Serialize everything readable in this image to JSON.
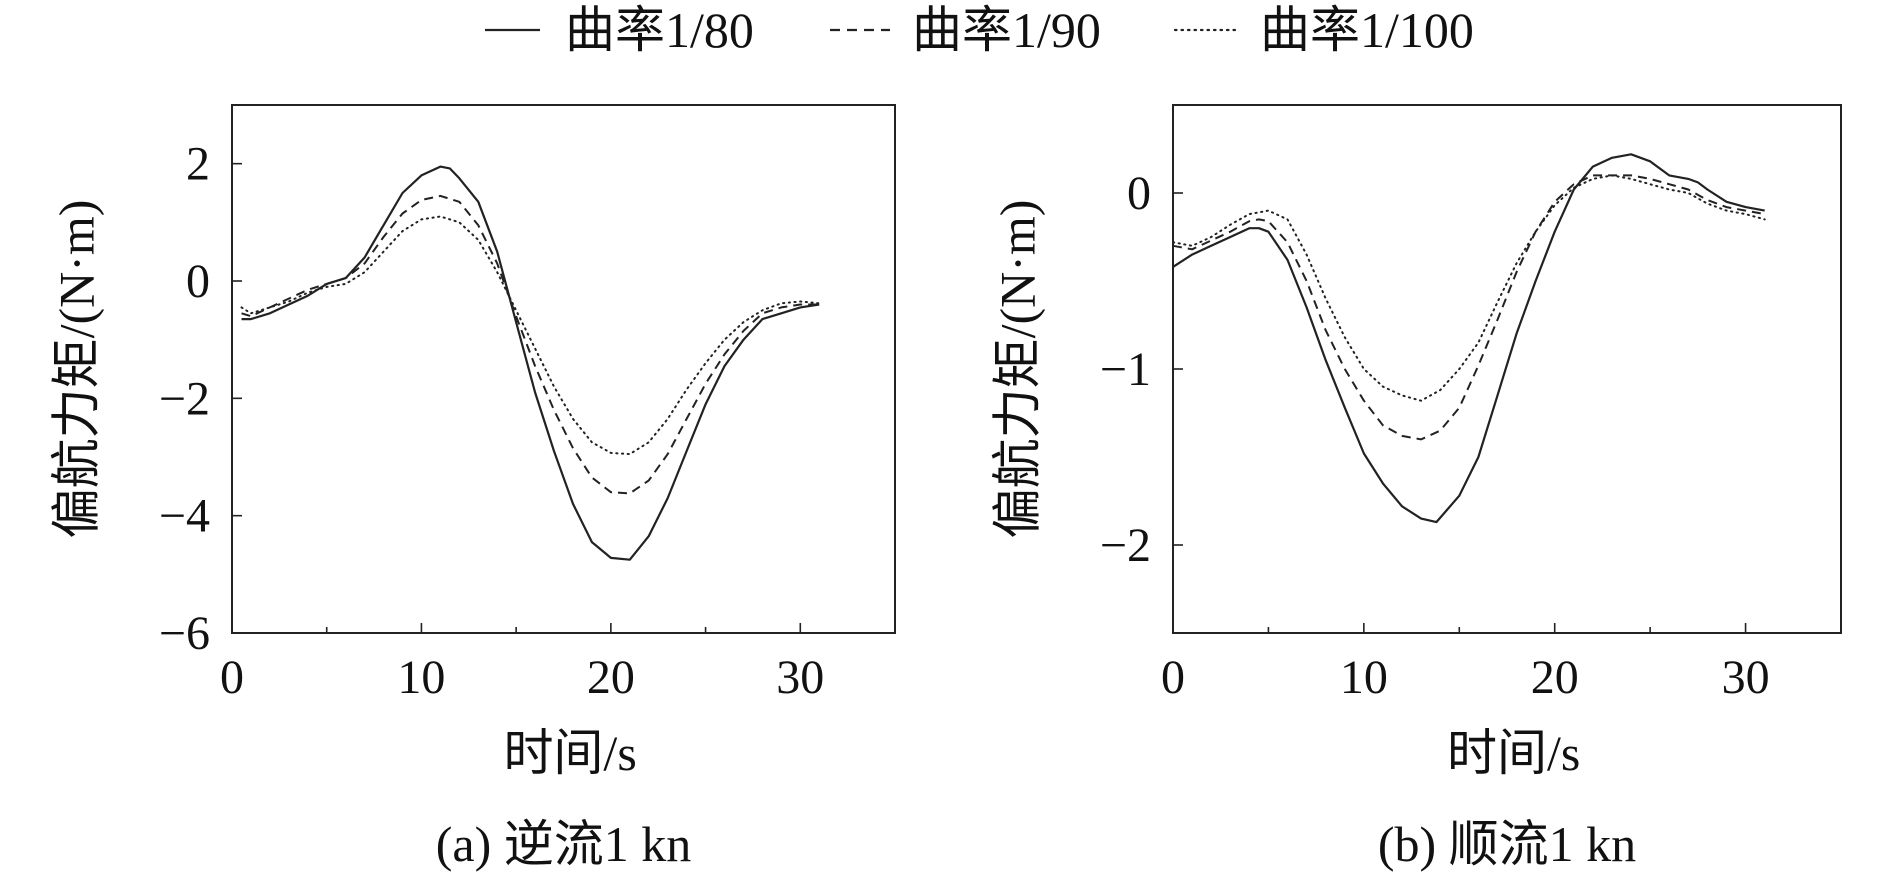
{
  "legend": [
    {
      "label": "曲率1/80",
      "style": "solid"
    },
    {
      "label": "曲率1/90",
      "style": "dashed"
    },
    {
      "label": "曲率1/100",
      "style": "dotted"
    }
  ],
  "colors": {
    "line": "#222222",
    "axis": "#222222",
    "background": "#ffffff"
  },
  "chart_data": [
    {
      "type": "line",
      "caption": "(a) 逆流1 kn",
      "xlabel": "时间/s",
      "ylabel": "偏航力矩/(N·m)",
      "xlim": [
        0,
        35
      ],
      "ylim": [
        -6,
        3
      ],
      "xticks": [
        0,
        10,
        20,
        30
      ],
      "yticks": [
        -6,
        -4,
        -2,
        0,
        2
      ],
      "ytick_labels": [
        "−6",
        "−4",
        "−2",
        "0",
        "2"
      ],
      "series": [
        {
          "name": "曲率1/80",
          "style": "solid",
          "x": [
            0.5,
            1,
            2,
            3,
            4,
            5,
            6,
            7,
            8,
            9,
            10,
            11,
            11.5,
            12,
            13,
            14,
            15,
            16,
            17,
            18,
            19,
            20,
            21,
            22,
            23,
            24,
            25,
            26,
            27,
            28,
            29,
            30,
            31
          ],
          "y": [
            -0.65,
            -0.65,
            -0.55,
            -0.4,
            -0.25,
            -0.05,
            0.05,
            0.4,
            0.95,
            1.5,
            1.8,
            1.95,
            1.92,
            1.75,
            1.35,
            0.5,
            -0.7,
            -1.9,
            -2.9,
            -3.8,
            -4.45,
            -4.72,
            -4.75,
            -4.35,
            -3.7,
            -2.9,
            -2.1,
            -1.45,
            -1.0,
            -0.65,
            -0.55,
            -0.45,
            -0.4
          ]
        },
        {
          "name": "曲率1/90",
          "style": "dashed",
          "x": [
            0.5,
            1,
            2,
            3,
            4,
            5,
            6,
            7,
            8,
            9,
            10,
            11,
            12,
            13,
            14,
            15,
            16,
            17,
            18,
            19,
            20,
            21,
            22,
            23,
            24,
            25,
            26,
            27,
            28,
            29,
            30,
            31
          ],
          "y": [
            -0.55,
            -0.6,
            -0.45,
            -0.3,
            -0.15,
            -0.05,
            0.05,
            0.3,
            0.75,
            1.15,
            1.38,
            1.45,
            1.35,
            0.95,
            0.3,
            -0.6,
            -1.45,
            -2.2,
            -2.85,
            -3.35,
            -3.6,
            -3.62,
            -3.4,
            -2.95,
            -2.35,
            -1.75,
            -1.25,
            -0.85,
            -0.55,
            -0.45,
            -0.4,
            -0.4
          ]
        },
        {
          "name": "曲率1/100",
          "style": "dotted",
          "x": [
            0.5,
            1,
            2,
            3,
            4,
            5,
            6,
            7,
            8,
            9,
            10,
            11,
            12,
            13,
            14,
            15,
            16,
            17,
            18,
            19,
            20,
            21,
            22,
            23,
            24,
            25,
            26,
            27,
            28,
            29,
            30,
            31
          ],
          "y": [
            -0.45,
            -0.55,
            -0.45,
            -0.35,
            -0.2,
            -0.1,
            -0.05,
            0.15,
            0.5,
            0.85,
            1.05,
            1.1,
            1.0,
            0.7,
            0.15,
            -0.5,
            -1.15,
            -1.8,
            -2.35,
            -2.75,
            -2.93,
            -2.95,
            -2.75,
            -2.35,
            -1.85,
            -1.4,
            -1.0,
            -0.7,
            -0.5,
            -0.38,
            -0.35,
            -0.38
          ]
        }
      ]
    },
    {
      "type": "line",
      "caption": "(b) 顺流1 kn",
      "xlabel": "时间/s",
      "ylabel": "偏航力矩/(N·m)",
      "xlim": [
        0,
        35
      ],
      "ylim": [
        -2.5,
        0.5
      ],
      "xticks": [
        0,
        10,
        20,
        30
      ],
      "yticks": [
        -2,
        -1,
        0
      ],
      "ytick_labels": [
        "−2",
        "−1",
        "0"
      ],
      "series": [
        {
          "name": "曲率1/80",
          "style": "solid",
          "x": [
            0,
            1,
            2,
            3,
            4,
            4.5,
            5,
            6,
            7,
            8,
            9,
            10,
            11,
            12,
            13,
            13.8,
            15,
            16,
            17,
            18,
            19,
            20,
            21,
            22,
            23,
            24,
            25,
            26,
            27,
            27.5,
            28,
            29,
            30,
            31
          ],
          "y": [
            -0.42,
            -0.35,
            -0.3,
            -0.25,
            -0.2,
            -0.2,
            -0.22,
            -0.38,
            -0.65,
            -0.95,
            -1.22,
            -1.48,
            -1.65,
            -1.78,
            -1.85,
            -1.87,
            -1.72,
            -1.5,
            -1.15,
            -0.8,
            -0.5,
            -0.22,
            0.02,
            0.15,
            0.2,
            0.22,
            0.18,
            0.1,
            0.08,
            0.06,
            0.02,
            -0.05,
            -0.08,
            -0.1
          ]
        },
        {
          "name": "曲率1/90",
          "style": "dashed",
          "x": [
            0,
            1,
            2,
            3,
            4,
            4.5,
            5,
            6,
            7,
            8,
            9,
            10,
            11,
            12,
            13,
            14,
            15,
            16,
            17,
            18,
            19,
            20,
            21,
            22,
            23,
            24,
            25,
            26,
            27,
            28,
            29,
            30,
            31
          ],
          "y": [
            -0.3,
            -0.32,
            -0.27,
            -0.22,
            -0.16,
            -0.15,
            -0.16,
            -0.28,
            -0.5,
            -0.78,
            -1.0,
            -1.18,
            -1.32,
            -1.38,
            -1.4,
            -1.35,
            -1.22,
            -0.98,
            -0.72,
            -0.45,
            -0.22,
            -0.05,
            0.05,
            0.1,
            0.1,
            0.1,
            0.08,
            0.05,
            0.02,
            -0.04,
            -0.08,
            -0.1,
            -0.12
          ]
        },
        {
          "name": "曲率1/100",
          "style": "dotted",
          "x": [
            0,
            1,
            2,
            3,
            4,
            5,
            6,
            7,
            8,
            9,
            10,
            11,
            12,
            13,
            14,
            15,
            16,
            17,
            18,
            19,
            20,
            21,
            22,
            23,
            24,
            25,
            26,
            27,
            28,
            29,
            30,
            31
          ],
          "y": [
            -0.28,
            -0.3,
            -0.25,
            -0.18,
            -0.12,
            -0.1,
            -0.15,
            -0.35,
            -0.6,
            -0.82,
            -1.0,
            -1.1,
            -1.15,
            -1.18,
            -1.12,
            -1.0,
            -0.85,
            -0.62,
            -0.4,
            -0.22,
            -0.07,
            0.03,
            0.08,
            0.1,
            0.08,
            0.05,
            0.02,
            0.0,
            -0.06,
            -0.1,
            -0.12,
            -0.15
          ]
        }
      ]
    }
  ]
}
